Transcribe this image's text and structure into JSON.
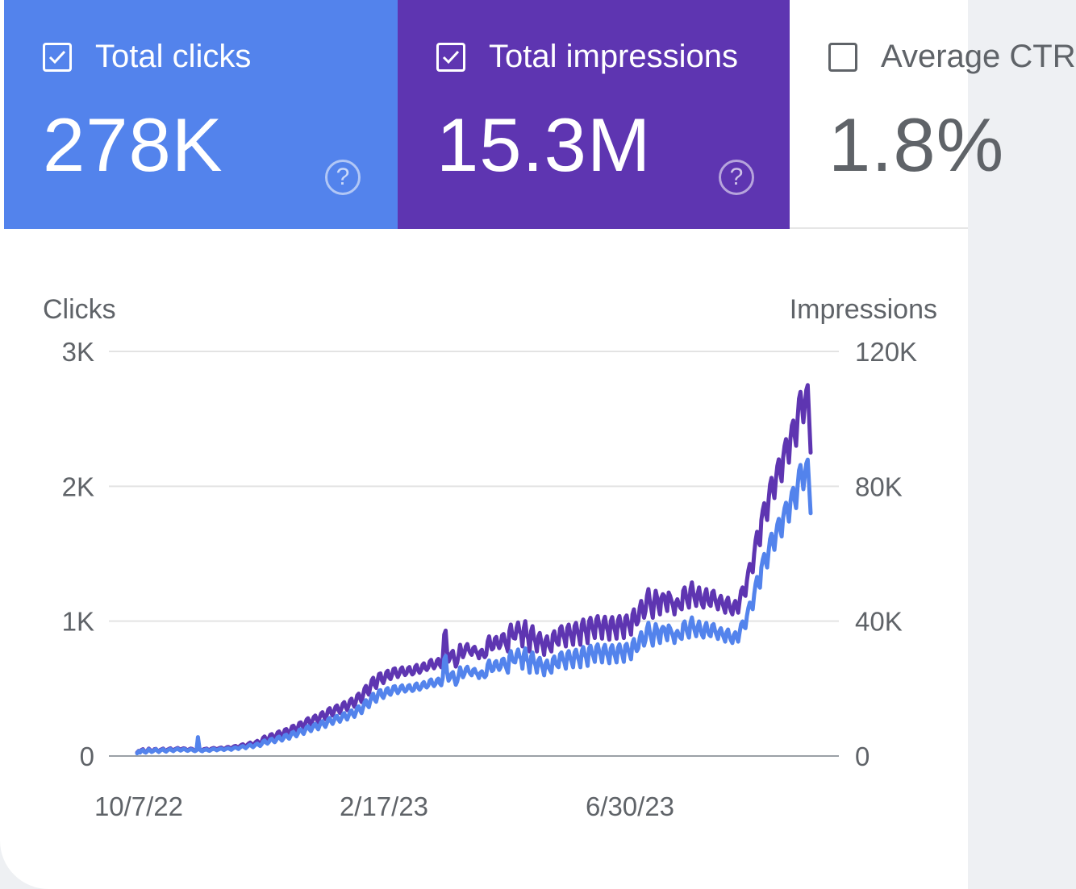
{
  "cards": {
    "clicks": {
      "label": "Total clicks",
      "value": "278K",
      "checked": true,
      "color": "#5383ec",
      "help": "?"
    },
    "impressions": {
      "label": "Total impressions",
      "value": "15.3M",
      "checked": true,
      "color": "#5e35b1",
      "help": "?"
    },
    "ctr": {
      "label": "Average CTR",
      "value": "1.8%",
      "checked": false
    }
  },
  "chart_data": {
    "type": "line",
    "left_axis": {
      "title": "Clicks",
      "ticks": [
        "0",
        "1K",
        "2K",
        "3K"
      ],
      "range": [
        0,
        3000
      ]
    },
    "right_axis": {
      "title": "Impressions",
      "ticks": [
        "0",
        "40K",
        "80K",
        "120K"
      ],
      "range": [
        0,
        120000
      ]
    },
    "x_ticks": [
      "10/7/22",
      "2/17/23",
      "6/30/23"
    ],
    "x_range": [
      "10/7/22",
      "11/12/23"
    ],
    "series": [
      {
        "name": "Impressions",
        "axis": "right",
        "color": "#5e35b1",
        "values": [
          1000,
          1500,
          1200,
          1800,
          2000,
          1400,
          1200,
          1600,
          2200,
          1800,
          1300,
          1500,
          2000,
          2100,
          1600,
          1400,
          1800,
          2000,
          2200,
          1700,
          1500,
          1900,
          2100,
          2300,
          1900,
          1700,
          2000,
          2200,
          2400,
          2100,
          1800,
          2100,
          2300,
          2200,
          1900,
          1700,
          2000,
          2200,
          2100,
          1800,
          1600,
          1900,
          2100,
          2000,
          1700,
          1600,
          2000,
          2100,
          2200,
          1900,
          1700,
          2100,
          2300,
          2400,
          2200,
          1900,
          2200,
          2400,
          2500,
          2300,
          2000,
          2300,
          2600,
          2700,
          2400,
          2200,
          2600,
          2900,
          3000,
          2700,
          2500,
          3000,
          3300,
          3500,
          3100,
          2800,
          3300,
          3700,
          4000,
          3600,
          3200,
          3700,
          4200,
          4500,
          4000,
          3600,
          4300,
          5400,
          5800,
          5000,
          4600,
          5300,
          6300,
          6500,
          5700,
          5200,
          6000,
          7000,
          7300,
          6400,
          5800,
          6600,
          7800,
          8000,
          7000,
          6500,
          7600,
          8800,
          9000,
          8000,
          7400,
          8400,
          9800,
          10000,
          9000,
          8300,
          9600,
          10800,
          11200,
          10000,
          9300,
          10500,
          11600,
          12000,
          10800,
          10000,
          11400,
          12600,
          13000,
          11700,
          10900,
          12200,
          13800,
          14200,
          12800,
          12000,
          13300,
          14600,
          15000,
          13600,
          12800,
          14000,
          15500,
          16000,
          14500,
          13600,
          15000,
          16500,
          17000,
          15500,
          14600,
          16200,
          18000,
          18500,
          17000,
          16000,
          18000,
          20000,
          20800,
          19000,
          18200,
          20500,
          22500,
          23200,
          21000,
          20200,
          22400,
          24300,
          24500,
          22400,
          21600,
          23000,
          24800,
          25300,
          23300,
          22800,
          24000,
          25800,
          26000,
          24400,
          23400,
          24300,
          25800,
          26300,
          24800,
          24000,
          24500,
          26000,
          26400,
          25000,
          24200,
          24600,
          26500,
          27000,
          25400,
          24700,
          25400,
          27000,
          27500,
          26000,
          25500,
          26200,
          28000,
          28500,
          26800,
          26000,
          26800,
          28300,
          28800,
          27000,
          26300,
          29000,
          36000,
          37200,
          31000,
          28000,
          29000,
          30600,
          31200,
          28700,
          26500,
          27700,
          30000,
          33000,
          31000,
          29300,
          30500,
          32500,
          33200,
          31500,
          30600,
          30000,
          32000,
          32400,
          31000,
          30300,
          29000,
          31000,
          31500,
          30000,
          29300,
          30000,
          34000,
          35500,
          33000,
          31600,
          32000,
          34800,
          35300,
          33200,
          32000,
          33000,
          35800,
          36200,
          34000,
          32500,
          31000,
          37000,
          39000,
          36000,
          35000,
          34800,
          38000,
          39600,
          37000,
          36200,
          32500,
          38000,
          40000,
          36000,
          34800,
          31000,
          37000,
          38500,
          35000,
          33800,
          31000,
          35500,
          36500,
          34000,
          32500,
          30000,
          34500,
          35500,
          33000,
          32000,
          31000,
          36000,
          37000,
          34500,
          33500,
          33000,
          37800,
          38500,
          36000,
          34800,
          32500,
          38000,
          39000,
          36500,
          35000,
          33000,
          38500,
          39500,
          37000,
          35500,
          33000,
          39000,
          40500,
          37800,
          36500,
          33500,
          40000,
          41000,
          38500,
          37000,
          35000,
          40500,
          41500,
          39000,
          37500,
          34800,
          40000,
          41300,
          38500,
          37000,
          34500,
          40000,
          41200,
          38500,
          37000,
          34800,
          40300,
          41500,
          39000,
          37500,
          35000,
          41000,
          41700,
          39500,
          38000,
          36000,
          42000,
          43500,
          40500,
          39000,
          40000,
          44000,
          46000,
          43500,
          41000,
          43000,
          47500,
          49500,
          46000,
          43500,
          41000,
          46000,
          49000,
          47000,
          44000,
          42000,
          47000,
          48000,
          47500,
          45000,
          43000,
          48500,
          47500,
          46000,
          44500,
          42000,
          45500,
          46500,
          45000,
          44000,
          43500,
          49000,
          50000,
          47500,
          45500,
          44000,
          49500,
          51500,
          48500,
          46500,
          44500,
          48000,
          50000,
          47000,
          45000,
          44000,
          48000,
          49500,
          46500,
          45000,
          44500,
          48500,
          49000,
          46500,
          45000,
          43500,
          46500,
          47500,
          45500,
          44000,
          42500,
          46000,
          47000,
          44500,
          43000,
          42000,
          45000,
          46000,
          44000,
          42500,
          46000,
          49000,
          50000,
          48000,
          47500,
          52000,
          55000,
          57000,
          55500,
          54500,
          60000,
          64000,
          66500,
          63500,
          62500,
          70000,
          73000,
          75000,
          72000,
          70000,
          76000,
          80500,
          82500,
          79000,
          76500,
          82000,
          86000,
          88000,
          84000,
          81500,
          88500,
          92000,
          94000,
          91000,
          87000,
          94000,
          98000,
          99500,
          95000,
          92000,
          100000,
          106000,
          108000,
          104000,
          99000,
          104000,
          108500,
          110000,
          100000,
          90000
        ],
        "note": "daily impressions, approximated from plot"
      },
      {
        "name": "Clicks",
        "axis": "left",
        "color": "#5383ec",
        "values": [
          20,
          35,
          25,
          40,
          45,
          30,
          25,
          35,
          50,
          40,
          30,
          35,
          45,
          50,
          38,
          30,
          40,
          45,
          50,
          38,
          32,
          42,
          48,
          52,
          42,
          36,
          45,
          50,
          55,
          46,
          40,
          46,
          52,
          50,
          42,
          38,
          44,
          50,
          48,
          40,
          36,
          42,
          140,
          60,
          40,
          35,
          44,
          46,
          50,
          42,
          38,
          46,
          50,
          54,
          48,
          42,
          48,
          52,
          56,
          50,
          44,
          50,
          56,
          58,
          52,
          46,
          54,
          62,
          64,
          58,
          52,
          62,
          70,
          74,
          66,
          58,
          68,
          78,
          84,
          74,
          66,
          76,
          86,
          92,
          82,
          74,
          88,
          108,
          116,
          100,
          92,
          104,
          124,
          128,
          112,
          102,
          118,
          138,
          144,
          126,
          114,
          130,
          154,
          158,
          138,
          128,
          150,
          174,
          178,
          158,
          146,
          166,
          194,
          198,
          178,
          164,
          190,
          214,
          222,
          198,
          184,
          208,
          230,
          238,
          214,
          198,
          226,
          250,
          258,
          232,
          216,
          242,
          274,
          282,
          254,
          238,
          264,
          290,
          298,
          270,
          254,
          278,
          308,
          318,
          288,
          270,
          298,
          328,
          338,
          308,
          290,
          322,
          358,
          368,
          338,
          318,
          358,
          398,
          414,
          378,
          362,
          408,
          448,
          462,
          418,
          402,
          446,
          484,
          488,
          446,
          430,
          458,
          494,
          504,
          464,
          454,
          478,
          514,
          518,
          486,
          466,
          484,
          514,
          524,
          494,
          478,
          488,
          518,
          526,
          498,
          482,
          490,
          528,
          538,
          506,
          492,
          506,
          538,
          548,
          518,
          508,
          522,
          558,
          568,
          534,
          518,
          534,
          564,
          574,
          538,
          524,
          578,
          718,
          742,
          618,
          558,
          578,
          610,
          622,
          572,
          528,
          552,
          598,
          658,
          618,
          584,
          608,
          648,
          662,
          628,
          610,
          598,
          638,
          646,
          618,
          604,
          578,
          618,
          628,
          598,
          584,
          598,
          678,
          708,
          658,
          630,
          638,
          694,
          704,
          662,
          638,
          658,
          714,
          722,
          678,
          648,
          618,
          738,
          778,
          718,
          698,
          694,
          758,
          790,
          738,
          722,
          648,
          758,
          798,
          718,
          694,
          618,
          738,
          768,
          698,
          674,
          618,
          708,
          728,
          678,
          648,
          598,
          688,
          708,
          658,
          638,
          618,
          718,
          738,
          688,
          668,
          658,
          754,
          768,
          718,
          694,
          648,
          758,
          778,
          728,
          698,
          658,
          768,
          788,
          738,
          708,
          658,
          778,
          808,
          754,
          728,
          668,
          798,
          818,
          768,
          738,
          698,
          808,
          828,
          778,
          748,
          694,
          798,
          824,
          768,
          738,
          688,
          798,
          822,
          768,
          738,
          694,
          804,
          828,
          778,
          748,
          698,
          818,
          832,
          788,
          758,
          718,
          838,
          868,
          808,
          778,
          798,
          878,
          918,
          868,
          818,
          858,
          948,
          988,
          918,
          868,
          818,
          918,
          978,
          938,
          878,
          838,
          938,
          958,
          948,
          898,
          858,
          968,
          948,
          918,
          888,
          838,
          908,
          928,
          898,
          878,
          868,
          978,
          998,
          948,
          908,
          878,
          988,
          1028,
          968,
          928,
          888,
          958,
          998,
          938,
          898,
          878,
          958,
          988,
          928,
          898,
          888,
          968,
          978,
          928,
          898,
          868,
          928,
          948,
          908,
          878,
          848,
          918,
          938,
          888,
          858,
          838,
          898,
          918,
          878,
          848,
          918,
          978,
          998,
          958,
          948,
          1038,
          1098,
          1138,
          1108,
          1088,
          1198,
          1278,
          1328,
          1268,
          1248,
          1398,
          1458,
          1498,
          1438,
          1398,
          1518,
          1608,
          1648,
          1578,
          1528,
          1638,
          1718,
          1758,
          1678,
          1628,
          1768,
          1838,
          1878,
          1818,
          1738,
          1878,
          1958,
          1988,
          1898,
          1838,
          1998,
          2118,
          2158,
          2078,
          1978,
          2078,
          2168,
          2198,
          2000,
          1800
        ]
      }
    ]
  }
}
